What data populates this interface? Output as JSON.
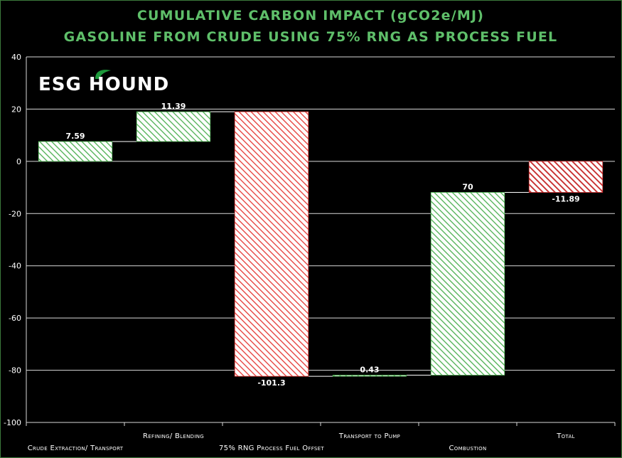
{
  "chart_data": {
    "type": "bar",
    "subtype": "waterfall",
    "title_lines": [
      "CUMULATIVE CARBON IMPACT (gCO2e/MJ)",
      "GASOLINE FROM CRUDE USING 75% RNG AS PROCESS FUEL"
    ],
    "categories": [
      "Crude Extraction/ Transport",
      "Refining/ Blending",
      "75% RNG Process Fuel Offset",
      "Transport to Pump",
      "Combustion",
      "Total"
    ],
    "values": [
      7.59,
      11.39,
      -101.3,
      0.43,
      70,
      -11.89
    ],
    "data_labels": [
      "7.59",
      "11.39",
      "-101.3",
      "0.43",
      "70",
      "-11.89"
    ],
    "bar_kind": [
      "step",
      "step",
      "step",
      "step",
      "step",
      "total"
    ],
    "ylim": [
      -100,
      40
    ],
    "yticks": [
      40,
      20,
      0,
      -20,
      -40,
      -60,
      -80,
      -100
    ],
    "xlabel": "",
    "ylabel": "",
    "grid": true,
    "colors": {
      "increase": "#4caf50",
      "decrease": "#e53935",
      "total": "#d32f2f",
      "title": "#5fbf6a",
      "border": "#3c7a3c"
    }
  },
  "logo": {
    "text": "ESG HOUND",
    "icon": "leaf-icon"
  }
}
